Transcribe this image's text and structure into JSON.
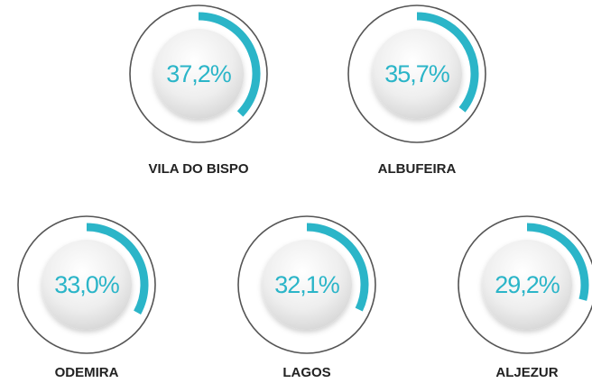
{
  "chart_data": {
    "type": "radial",
    "categories": [
      "VILA DO BISPO",
      "ALBUFEIRA",
      "ODEMIRA",
      "LAGOS",
      "ALJEZUR"
    ],
    "values": [
      37.2,
      35.7,
      33.0,
      32.1,
      29.2
    ],
    "value_labels": [
      "37,2%",
      "35,7%",
      "33,0%",
      "32,1%",
      "29,2%"
    ],
    "color": "#2bb5c8"
  }
}
